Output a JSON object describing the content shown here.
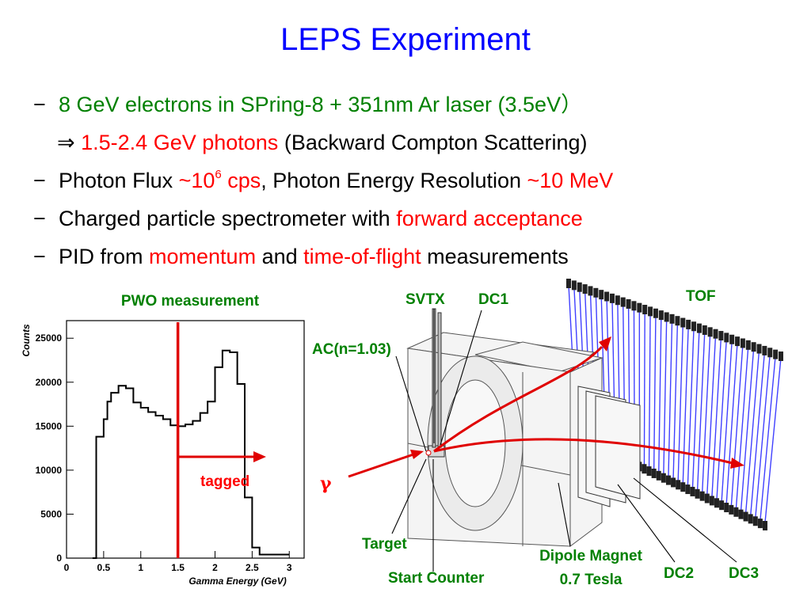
{
  "title": "LEPS Experiment",
  "bullets": {
    "b1": {
      "dash": "−",
      "text": "8 GeV electrons in SPring-8 + 351nm Ar laser (3.5eV）"
    },
    "b1_sub": {
      "arrow": "⇒",
      "highlight": "1.5-2.4 GeV photons",
      "rest": "(Backward Compton Scattering)"
    },
    "b2": {
      "dash": "−",
      "pre": "Photon Flux ",
      "flux": "~10",
      "exp": "6",
      "unit": " cps",
      "mid": ", Photon Energy Resolution ",
      "res": "~10 MeV"
    },
    "b3": {
      "dash": "−",
      "pre": "Charged particle spectrometer with ",
      "highlight": "forward acceptance"
    },
    "b4": {
      "dash": "−",
      "pre": "PID from ",
      "h1": "momentum",
      "mid": " and ",
      "h2": "time-of-flight",
      "post": " measurements"
    }
  },
  "histogram": {
    "title": "PWO measurement",
    "tagged_label": "tagged"
  },
  "chart_data": {
    "type": "histogram",
    "title": "PWO measurement",
    "xlabel": "Gamma Energy (GeV)",
    "ylabel": "Counts",
    "xlim": [
      0,
      3.2
    ],
    "ylim": [
      0,
      27000
    ],
    "x_ticks": [
      "0",
      "0.5",
      "1",
      "1.5",
      "2",
      "2.5",
      "3"
    ],
    "y_ticks": [
      "0",
      "5000",
      "10000",
      "15000",
      "20000",
      "25000"
    ],
    "bin_edges": [
      0.35,
      0.4,
      0.5,
      0.55,
      0.6,
      0.7,
      0.8,
      0.9,
      1.0,
      1.1,
      1.2,
      1.3,
      1.4,
      1.5,
      1.6,
      1.7,
      1.8,
      1.9,
      2.0,
      2.1,
      2.2,
      2.3,
      2.4,
      2.5,
      2.6,
      3.0
    ],
    "values": [
      0,
      13800,
      15800,
      17800,
      18800,
      19600,
      19300,
      17700,
      17100,
      16600,
      16200,
      15800,
      15100,
      15000,
      15200,
      15600,
      16500,
      17800,
      21700,
      23600,
      23400,
      19800,
      6900,
      1200,
      400
    ],
    "threshold_x": 1.5
  },
  "detector": {
    "labels": {
      "svtx": "SVTX",
      "dc1": "DC1",
      "tof": "TOF",
      "ac": "AC(n=1.03)",
      "target": "Target",
      "start_counter": "Start Counter",
      "dipole1": "Dipole Magnet",
      "dipole2": "0.7 Tesla",
      "dc2": "DC2",
      "dc3": "DC3"
    },
    "gamma": "γ"
  },
  "colors": {
    "title": "#0000ff",
    "highlight_green": "#008000",
    "highlight_red": "#ff0000",
    "tof_blue": "#4040ff"
  }
}
